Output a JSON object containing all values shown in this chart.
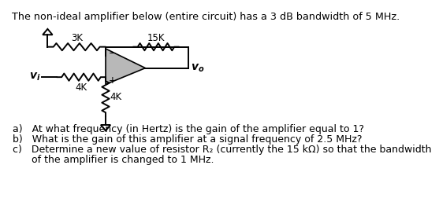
{
  "title_text": "The non-ideal amplifier below (entire circuit) has a 3 dB bandwidth of 5 MHz.",
  "bg_color": "#ffffff",
  "text_color": "#000000",
  "circuit_color": "#000000",
  "question_a": "a)   At what frequency (in Hertz) is the gain of the amplifier equal to 1?",
  "question_b": "b)   What is the gain of this amplifier at a signal frequency of 2.5 MHz?",
  "question_c1": "c)   Determine a new value of resistor R₂ (currently the 15 kΩ) so that the bandwidth",
  "question_c2": "      of the amplifier is changed to 1 MHz."
}
